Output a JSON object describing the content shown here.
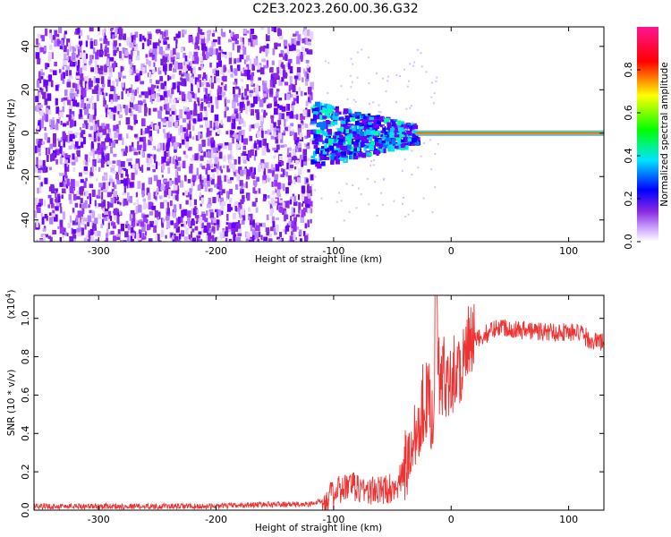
{
  "figure": {
    "title": "C2E3.2023.260.00.36.G32"
  },
  "chart_data": [
    {
      "type": "heatmap",
      "xlabel": "Height of straight line (km)",
      "ylabel": "Frequency (Hz)",
      "xlim": [
        -355,
        130
      ],
      "ylim": [
        -50,
        49
      ],
      "xticks": [
        -300,
        -200,
        -100,
        0,
        100
      ],
      "yticks": [
        -40,
        -20,
        0,
        20,
        40
      ],
      "grid": false,
      "colorbar": {
        "label": "Normalized spectral amplitude",
        "range": [
          0,
          1
        ],
        "ticks": [
          0.0,
          0.2,
          0.4,
          0.6,
          0.8
        ],
        "colors": [
          "#ffffff",
          "#cfa8ff",
          "#8a2be2",
          "#0000ff",
          "#00e5ff",
          "#00ff00",
          "#ffff00",
          "#ff0000",
          "#ff1493"
        ]
      },
      "regions": [
        {
          "name": "noise",
          "x": [
            -355,
            -120
          ],
          "y": [
            -50,
            49
          ],
          "amplitude": 0.1
        },
        {
          "name": "transition",
          "x": [
            -120,
            -30
          ],
          "y": [
            -15,
            15
          ],
          "amplitude": 0.35
        },
        {
          "name": "carrier",
          "x": [
            -30,
            130
          ],
          "y": [
            -1.5,
            1.5
          ],
          "amplitude": 0.9
        }
      ]
    },
    {
      "type": "line",
      "xlabel": "Height of straight line (km)",
      "ylabel": "SNR (10 * v/v)",
      "y_multiplier": "(x10",
      "y_multiplier_exp": "4",
      "y_multiplier_close": ")",
      "xlim": [
        -355,
        130
      ],
      "ylim": [
        0,
        1.12
      ],
      "xticks": [
        -300,
        -200,
        -100,
        0,
        100
      ],
      "yticks": [
        0.0,
        0.2,
        0.4,
        0.6,
        0.8,
        1.0
      ],
      "grid": false,
      "series": [
        {
          "color": "#ee3333",
          "x": [
            -355,
            -300,
            -250,
            -200,
            -160,
            -120,
            -105,
            -100,
            -90,
            -80,
            -70,
            -60,
            -50,
            -45,
            -40,
            -35,
            -30,
            -25,
            -20,
            -15,
            -13,
            -10,
            -5,
            0,
            5,
            10,
            15,
            20,
            25,
            30,
            40,
            60,
            80,
            100,
            110,
            120,
            130
          ],
          "y": [
            0.02,
            0.02,
            0.02,
            0.02,
            0.03,
            0.03,
            0.06,
            0.08,
            0.12,
            0.12,
            0.1,
            0.1,
            0.12,
            0.14,
            0.2,
            0.3,
            0.42,
            0.55,
            0.58,
            0.5,
            1.12,
            0.65,
            0.7,
            0.72,
            0.72,
            0.78,
            0.85,
            0.88,
            0.9,
            0.92,
            0.96,
            0.94,
            0.93,
            0.93,
            0.92,
            0.88,
            0.88
          ]
        }
      ]
    }
  ]
}
